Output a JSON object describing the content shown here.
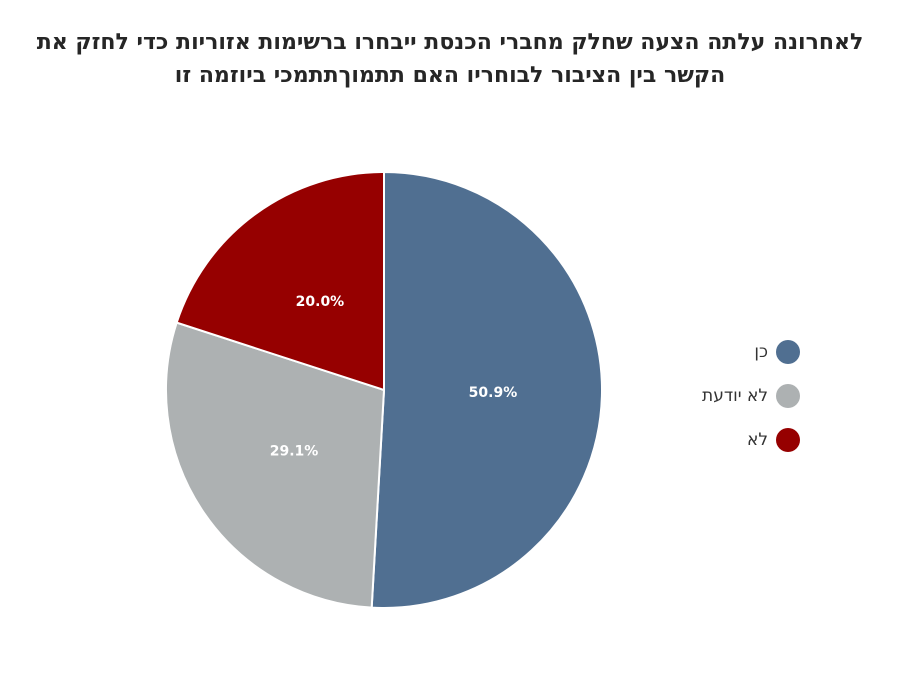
{
  "chart_data": {
    "type": "pie",
    "title_lines": [
      "לאחרונה עלתה הצעה שחלק מחברי הכנסת ייבחרו ברשימות אזוריות כדי לחזק את",
      "הקשר בין הציבור לבוחריו  האם תתמוךתתמכי ביוזמה זו"
    ],
    "slices": [
      {
        "label": "כן",
        "value": 50.9,
        "display": "50.9%",
        "color": "#506f91"
      },
      {
        "label": "לא יודעת",
        "value": 29.1,
        "display": "29.1%",
        "color": "#adb1b2"
      },
      {
        "label": "לא",
        "value": 20.0,
        "display": "20.0%",
        "color": "#960000"
      }
    ],
    "legend_position": "right",
    "start_direction": "top",
    "direction": "clockwise"
  }
}
